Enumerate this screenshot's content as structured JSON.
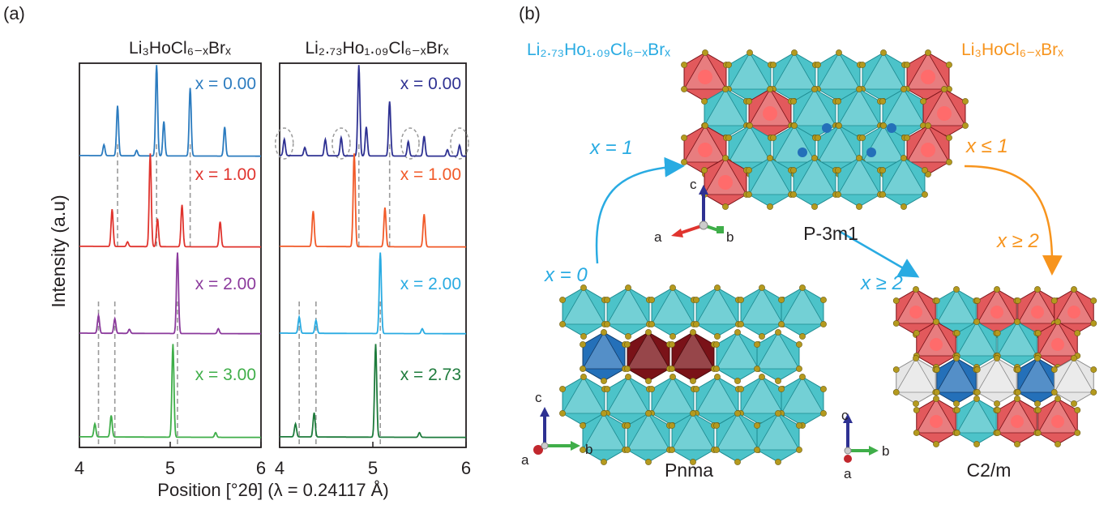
{
  "panel_a": {
    "label": "(a)",
    "left_title": "Li₃HoCl₆₋ₓBrₓ",
    "right_title": "Li₂.₇₃Ho₁.₀₉Cl₆₋ₓBrₓ",
    "y_label": "Intensity (a.u)",
    "x_label": "Position [°2θ] (λ = 0.24117 Å)"
  },
  "chart_data": [
    {
      "type": "line",
      "title": "Li₃HoCl₆₋ₓBrₓ",
      "xlabel": "Position [°2θ] (λ = 0.24117 Å)",
      "ylabel": "Intensity (a.u)",
      "xlim": [
        4,
        6
      ],
      "x_ticks": [
        "4",
        "5",
        "6"
      ],
      "series": [
        {
          "name": "x = 0.00",
          "color": "#2b7bbf",
          "peaks": [
            [
              4.27,
              0.12
            ],
            [
              4.42,
              0.55
            ],
            [
              4.63,
              0.06
            ],
            [
              4.85,
              1.0
            ],
            [
              4.93,
              0.38
            ],
            [
              5.22,
              0.75
            ],
            [
              5.6,
              0.32
            ]
          ]
        },
        {
          "name": "x = 1.00",
          "color": "#e0342e",
          "peaks": [
            [
              4.36,
              0.4
            ],
            [
              4.53,
              0.05
            ],
            [
              4.78,
              1.0
            ],
            [
              4.86,
              0.3
            ],
            [
              5.13,
              0.45
            ],
            [
              5.55,
              0.27
            ]
          ]
        },
        {
          "name": "x = 2.00",
          "color": "#8b3a9c",
          "peaks": [
            [
              4.21,
              0.22
            ],
            [
              4.39,
              0.18
            ],
            [
              4.55,
              0.05
            ],
            [
              5.08,
              1.0
            ],
            [
              5.53,
              0.06
            ]
          ]
        },
        {
          "name": "x = 3.00",
          "color": "#3fae49",
          "peaks": [
            [
              4.17,
              0.14
            ],
            [
              4.35,
              0.23
            ],
            [
              5.03,
              1.0
            ],
            [
              5.5,
              0.05
            ]
          ]
        }
      ]
    },
    {
      "type": "line",
      "title": "Li₂.₇₃Ho₁.₀₉Cl₆₋ₓBrₓ",
      "xlabel": "Position [°2θ] (λ = 0.24117 Å)",
      "ylabel": "Intensity (a.u)",
      "xlim": [
        4,
        6
      ],
      "x_ticks": [
        "4",
        "5",
        "6"
      ],
      "series": [
        {
          "name": "x = 0.00",
          "color": "#2e3192",
          "peaks": [
            [
              4.05,
              0.18
            ],
            [
              4.27,
              0.09
            ],
            [
              4.49,
              0.18
            ],
            [
              4.66,
              0.2
            ],
            [
              4.85,
              1.0
            ],
            [
              4.93,
              0.32
            ],
            [
              5.18,
              0.6
            ],
            [
              5.38,
              0.16
            ],
            [
              5.55,
              0.22
            ],
            [
              5.8,
              0.07
            ],
            [
              5.93,
              0.12
            ]
          ]
        },
        {
          "name": "x = 1.00",
          "color": "#f15a29",
          "peaks": [
            [
              4.36,
              0.38
            ],
            [
              4.8,
              1.0
            ],
            [
              5.13,
              0.42
            ],
            [
              5.55,
              0.35
            ]
          ]
        },
        {
          "name": "x = 2.00",
          "color": "#29abe2",
          "peaks": [
            [
              4.21,
              0.2
            ],
            [
              4.39,
              0.16
            ],
            [
              5.08,
              1.0
            ],
            [
              5.53,
              0.06
            ]
          ]
        },
        {
          "name": "x = 2.73",
          "color": "#1e7b3c",
          "peaks": [
            [
              4.17,
              0.14
            ],
            [
              4.37,
              0.26
            ],
            [
              5.03,
              1.0
            ],
            [
              5.5,
              0.05
            ]
          ]
        }
      ]
    }
  ],
  "panel_b": {
    "label": "(b)",
    "title_left": "Li₂.₇₃Ho₁.₀₉Cl₆₋ₓBrₓ",
    "title_right": "Li₃HoCl₆₋ₓBrₓ",
    "arrow_x1": "x = 1",
    "arrow_x0": "x = 0",
    "arrow_x_le1": "x ≤ 1",
    "arrow_x_ge2_orange": "x ≥ 2",
    "arrow_x_ge2_blue": "x ≥ 2",
    "phase_top": "P-3m1",
    "phase_left": "Pnma",
    "phase_right": "C2/m",
    "axes_top": {
      "c": "c",
      "a": "a",
      "b": "b"
    },
    "axes_left": {
      "c": "c",
      "a": "a",
      "b": "b"
    },
    "axes_right": {
      "c": "c",
      "a": "a",
      "b": "b"
    }
  },
  "colors": {
    "cyan": "#4cc3c9",
    "dark_red": "#7a1218",
    "pink_red": "#e2595c",
    "blue": "#2470b9",
    "orange": "#f7941d",
    "label_blue": "#29abe2",
    "atom": "#b49a1e"
  }
}
